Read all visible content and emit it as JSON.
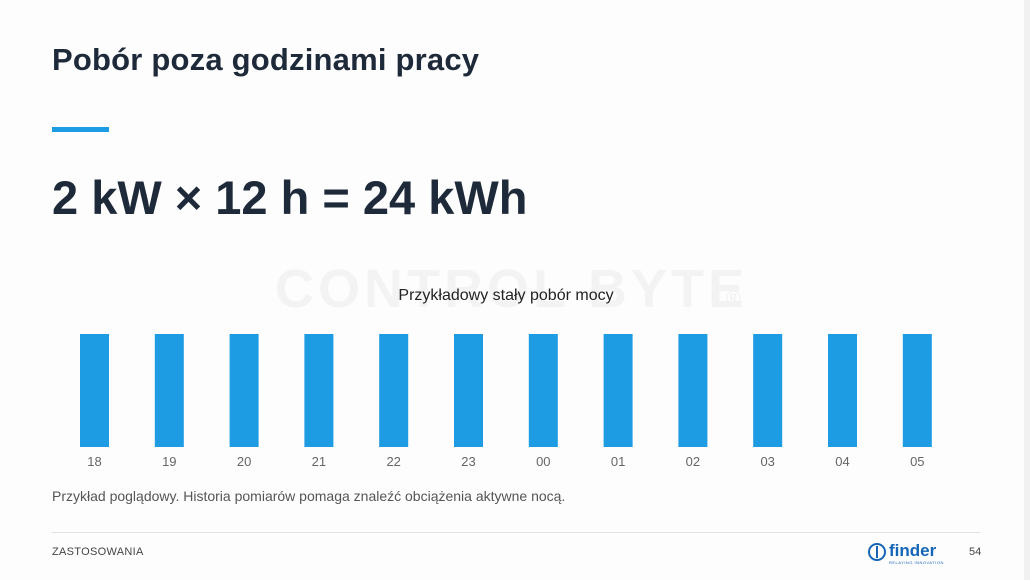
{
  "slide": {
    "title": "Pobór poza godzinami pracy",
    "equation": "2 kW × 12 h = 24 kWh",
    "watermark": "CONTROL BYTE",
    "watermark_mark": "®",
    "caption": "Przykład poglądowy. Historia pomiarów pomaga znaleźć obciążenia aktywne nocą.",
    "footer_section": "ZASTOSOWANIA",
    "page_number": "54",
    "logo": {
      "name": "finder",
      "tagline": "RELAYING INNOVATION",
      "icon": "finder-logo-icon"
    }
  },
  "colors": {
    "accent": "#1d9be3",
    "title": "#1e2a3a",
    "logo": "#1566b8"
  },
  "chart_data": {
    "type": "bar",
    "title": "Przykładowy stały pobór mocy",
    "categories": [
      "18",
      "19",
      "20",
      "21",
      "22",
      "23",
      "00",
      "01",
      "02",
      "03",
      "04",
      "05"
    ],
    "values": [
      2,
      2,
      2,
      2,
      2,
      2,
      2,
      2,
      2,
      2,
      2,
      2
    ],
    "ylim": [
      0,
      2
    ],
    "xlabel": "",
    "ylabel": "",
    "grid": false,
    "color": "#1d9be3"
  }
}
